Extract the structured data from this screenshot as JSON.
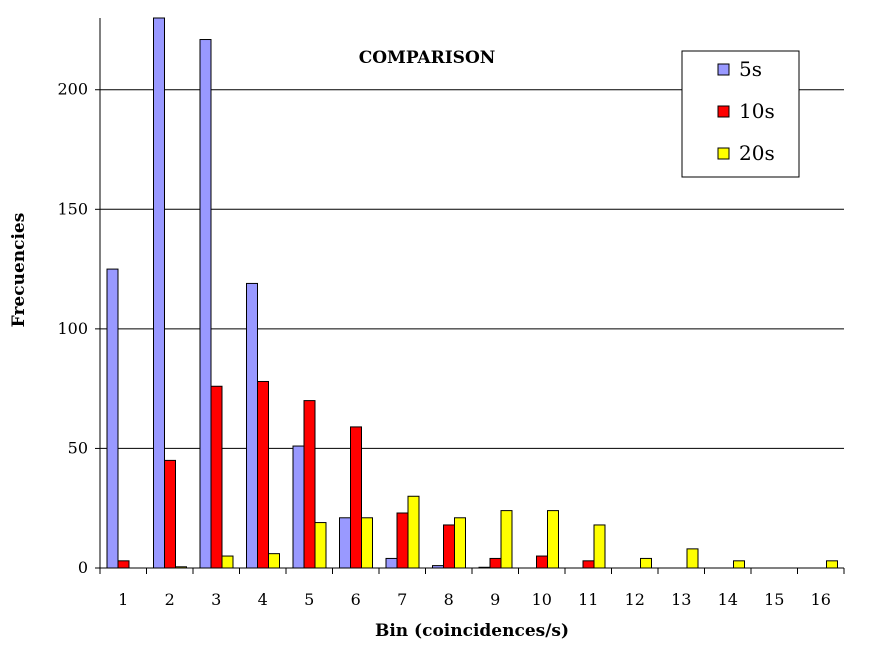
{
  "chart_data": {
    "type": "bar",
    "title": "COMPARISON",
    "xlabel": "Bin (coincidences/s)",
    "ylabel": "Frecuencies",
    "ylim": [
      0,
      230
    ],
    "yticks": [
      0,
      50,
      100,
      150,
      200
    ],
    "grid": true,
    "legend_position": "top-right",
    "categories": [
      "1",
      "2",
      "3",
      "4",
      "5",
      "6",
      "7",
      "8",
      "9",
      "10",
      "11",
      "12",
      "13",
      "14",
      "15",
      "16"
    ],
    "series": [
      {
        "name": "5s",
        "color": "#9999FF",
        "values": [
          125,
          230,
          221,
          119,
          51,
          21,
          4,
          1,
          0.3,
          0,
          0,
          0,
          0,
          0,
          0,
          0
        ]
      },
      {
        "name": "10s",
        "color": "#FF0000",
        "values": [
          3,
          45,
          76,
          78,
          70,
          59,
          23,
          18,
          4,
          5,
          3,
          0,
          0,
          0,
          0,
          0
        ]
      },
      {
        "name": "20s",
        "color": "#FFFF00",
        "values": [
          0,
          0.5,
          5,
          6,
          19,
          21,
          30,
          21,
          24,
          24,
          18,
          4,
          8,
          3,
          0,
          3
        ]
      }
    ]
  }
}
